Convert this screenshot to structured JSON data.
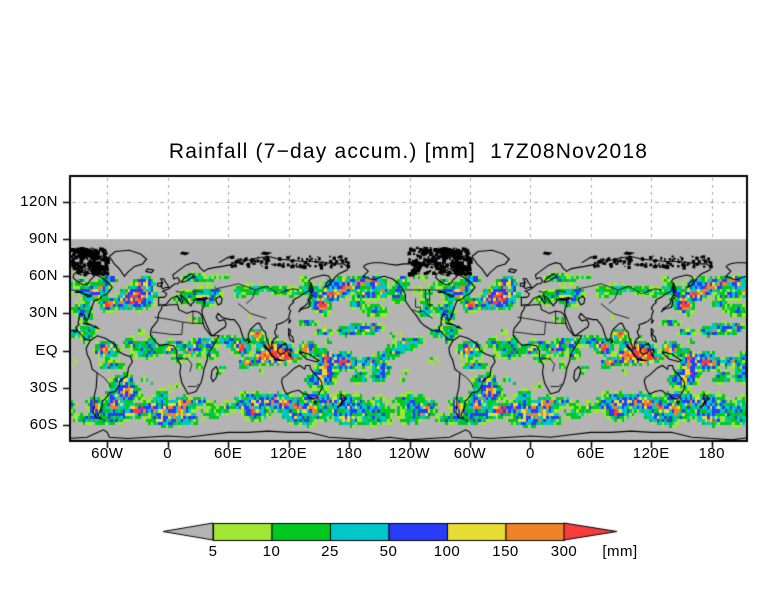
{
  "chart_data": {
    "type": "heatmap",
    "title": "Rainfall (7−day accum.) [mm]  17Z08Nov2018",
    "variable": "Rainfall (7-day accumulation)",
    "units": "mm",
    "timestamp_label": "17Z08Nov2018",
    "x_axis": {
      "tick_labels": [
        "60W",
        "0",
        "60E",
        "120E",
        "180",
        "120W",
        "60W",
        "0",
        "60E",
        "120E",
        "180"
      ],
      "tick_lons_deg": [
        -60,
        0,
        60,
        120,
        180,
        240,
        300,
        360,
        420,
        480,
        540
      ]
    },
    "y_axis": {
      "tick_labels": [
        "120N",
        "90N",
        "60N",
        "30N",
        "EQ",
        "30S",
        "60S"
      ],
      "tick_lats_deg": [
        120,
        90,
        60,
        30,
        0,
        -30,
        -60
      ]
    },
    "colorbar": {
      "tick_labels": [
        "5",
        "10",
        "25",
        "50",
        "100",
        "150",
        "300"
      ],
      "levels_mm": [
        5,
        10,
        25,
        50,
        100,
        150,
        300
      ],
      "units_label": "[mm]",
      "below_min_color": "#b4b4b4",
      "bin_colors": [
        "#a0e632",
        "#00c820",
        "#00c8c8",
        "#283cfa",
        "#e6dc32",
        "#f08228"
      ],
      "above_max_color": "#f83c3c"
    },
    "map_style": {
      "background_color": "#b4b4b4",
      "coastline_color": "#000000",
      "gridline_color": "#aaaaaa",
      "no_data_region": "white above 90N",
      "grid": "dashed gridlines every 60 deg lon / 30 deg lat"
    },
    "axis_ranges": {
      "lon_deg": [
        -97,
        575
      ],
      "lat_deg": [
        -73,
        141
      ]
    },
    "visible_features": [
      "continuous Southern Hemisphere storm-track rain band ~35S-60S",
      "heavy (>150mm, orange) cells in equatorial Indian Ocean / Maritime Continent",
      "North Pacific storm-track arc from Japan to Gulf of Alaska",
      "North Atlantic storm track off eastern North America",
      "dry subtropical zones shown gray (<5mm)"
    ]
  }
}
